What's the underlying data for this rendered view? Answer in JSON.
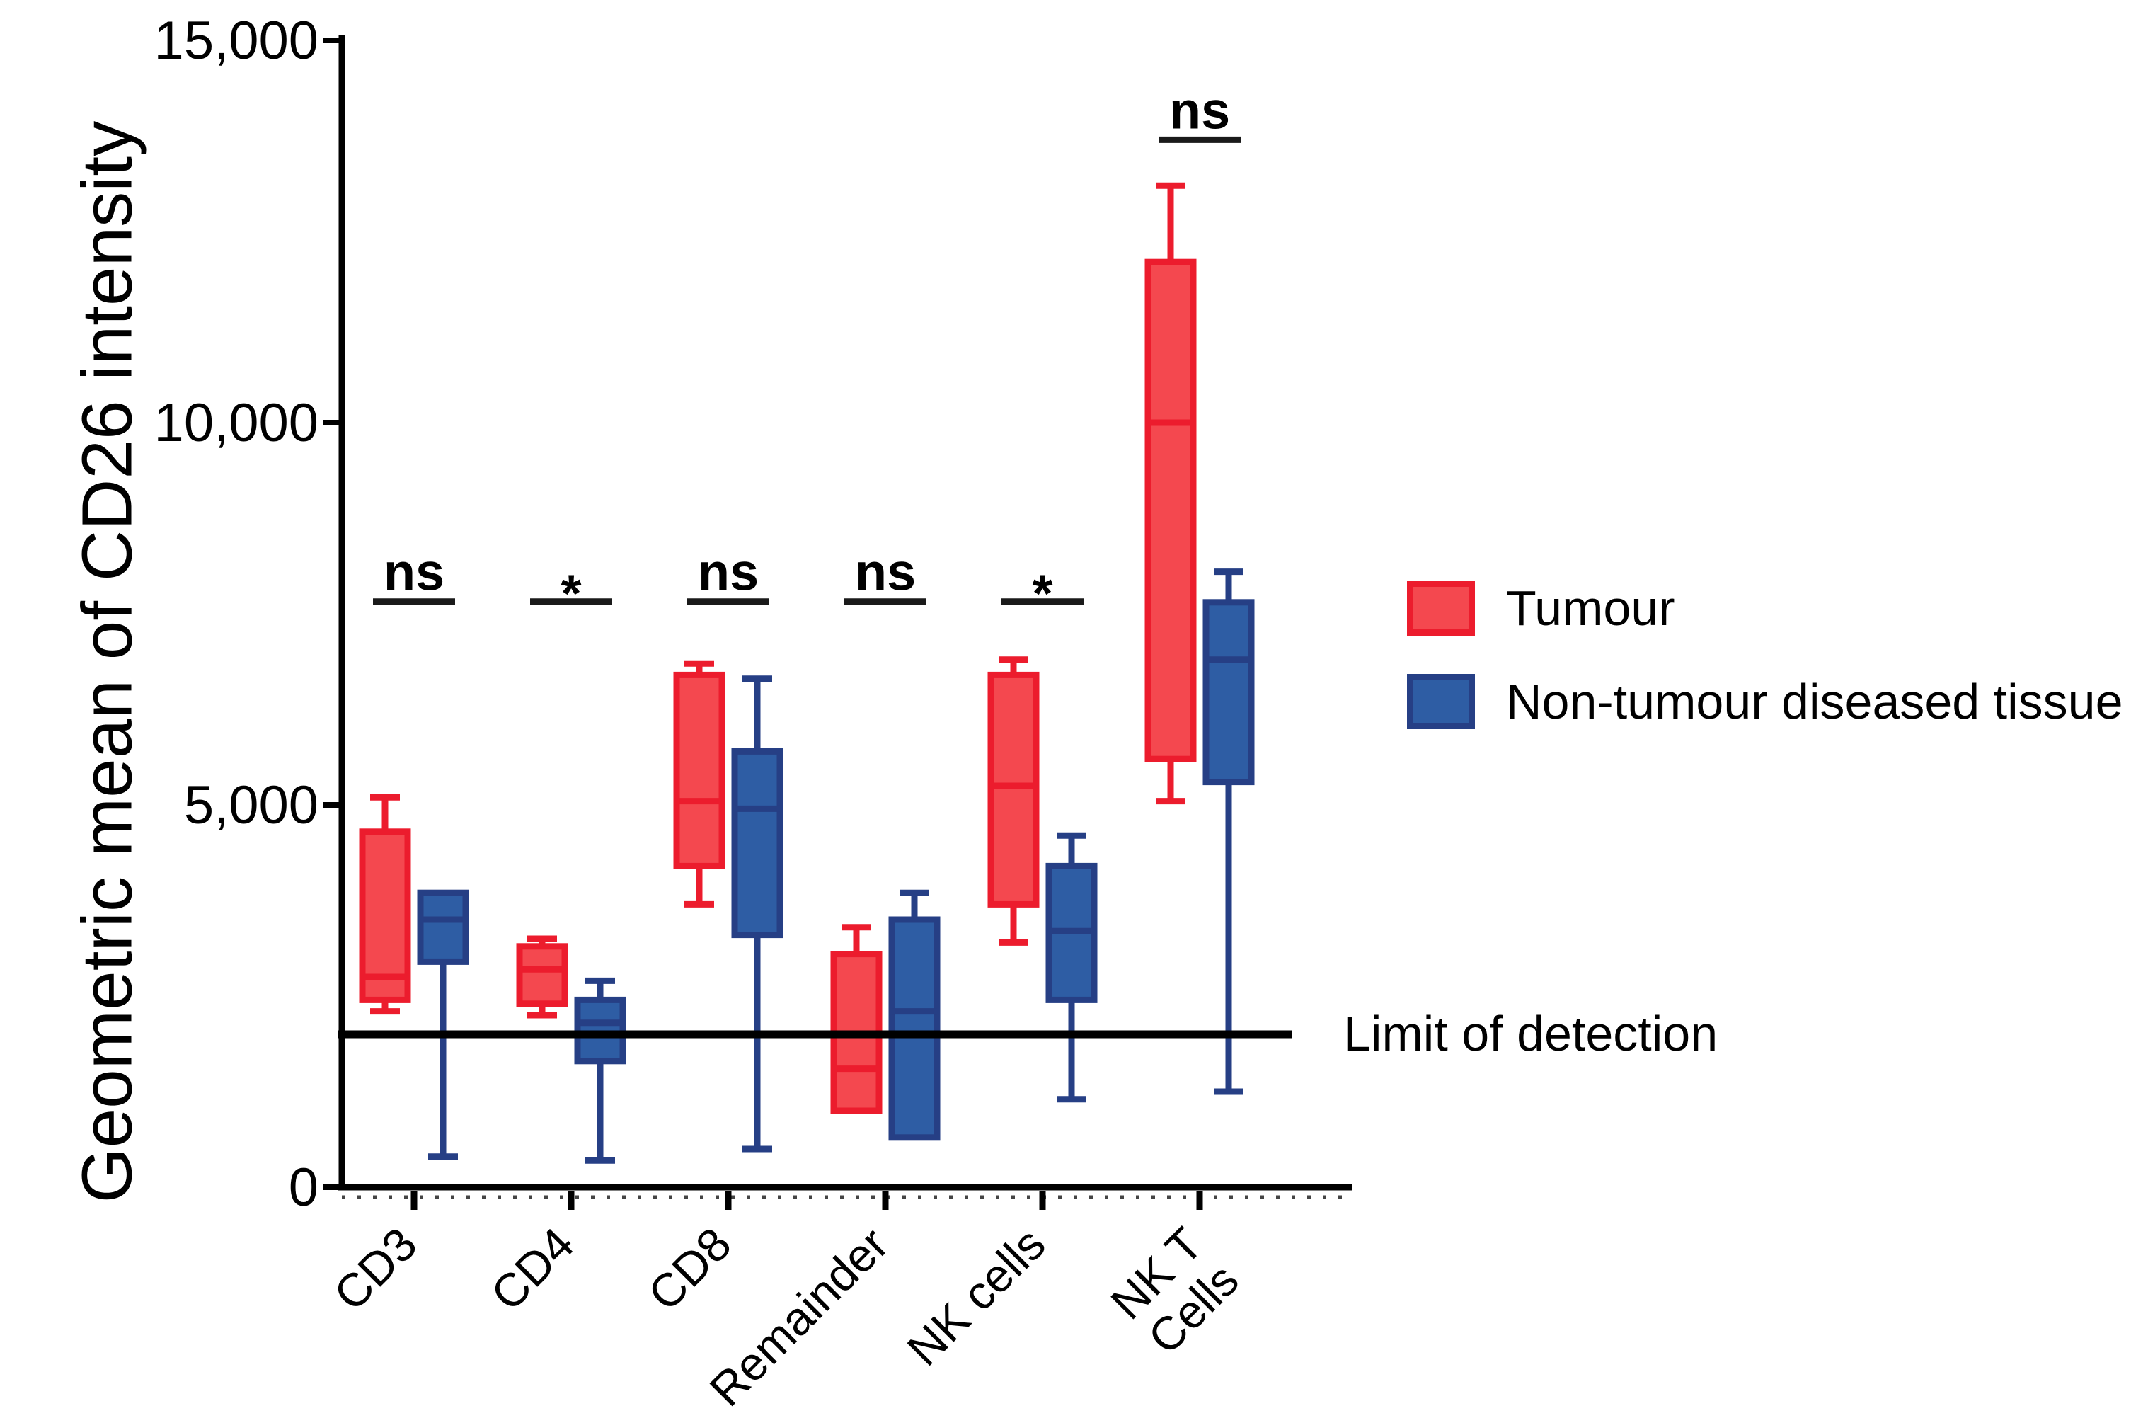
{
  "figure": {
    "y_axis_title": "Geometric mean of CD26 intensity",
    "background": "#ffffff",
    "axis_color": "#000000"
  },
  "legend": {
    "items": [
      {
        "label": "Tumour",
        "fill": "#F4484F",
        "stroke": "#EC1C2D"
      },
      {
        "label": "Non-tumour diseased tissue",
        "fill": "#2E5DA4",
        "stroke": "#263F85"
      }
    ]
  },
  "limit": {
    "label": "Limit of detection",
    "value": 2000
  },
  "chart_data": {
    "type": "box",
    "title": "",
    "xlabel": "",
    "ylabel": "Geometric mean of CD26 intensity",
    "ylim": [
      0,
      15000
    ],
    "grid": false,
    "legend_position": "right",
    "yticks": [
      {
        "value": 0,
        "label": "0"
      },
      {
        "value": 5000,
        "label": "5,000"
      },
      {
        "value": 10000,
        "label": "10,000"
      },
      {
        "value": 15000,
        "label": "15,000"
      }
    ],
    "categories": [
      "CD3",
      "CD4",
      "CD8",
      "Remainder",
      "NK cells",
      "NK T\nCells"
    ],
    "series": [
      {
        "name": "Tumour",
        "fill": "#F4484F",
        "stroke": "#EC1C2D",
        "boxes": [
          {
            "min": 2300,
            "q1": 2450,
            "median": 2750,
            "q3": 4650,
            "max": 5100
          },
          {
            "min": 2250,
            "q1": 2400,
            "median": 2850,
            "q3": 3150,
            "max": 3250
          },
          {
            "min": 3700,
            "q1": 4200,
            "median": 5050,
            "q3": 6700,
            "max": 6850
          },
          {
            "min": 1000,
            "q1": 1000,
            "median": 1550,
            "q3": 3050,
            "max": 3400
          },
          {
            "min": 3200,
            "q1": 3700,
            "median": 5250,
            "q3": 6700,
            "max": 6900
          },
          {
            "min": 5050,
            "q1": 5600,
            "median": 10000,
            "q3": 12100,
            "max": 13100
          }
        ]
      },
      {
        "name": "Non-tumour diseased tissue",
        "fill": "#2E5DA4",
        "stroke": "#263F85",
        "boxes": [
          {
            "min": 400,
            "q1": 2950,
            "median": 3500,
            "q3": 3850,
            "max": 3850
          },
          {
            "min": 350,
            "q1": 1650,
            "median": 2150,
            "q3": 2450,
            "max": 2700
          },
          {
            "min": 500,
            "q1": 3300,
            "median": 4950,
            "q3": 5700,
            "max": 6650
          },
          {
            "min": 650,
            "q1": 650,
            "median": 2300,
            "q3": 3500,
            "max": 3850
          },
          {
            "min": 1150,
            "q1": 2450,
            "median": 3350,
            "q3": 4200,
            "max": 4600
          },
          {
            "min": 1250,
            "q1": 5300,
            "median": 6900,
            "q3": 7650,
            "max": 8050
          }
        ]
      }
    ],
    "significance": [
      {
        "category": "CD3",
        "label": "ns",
        "bar_value": 7660
      },
      {
        "category": "CD4",
        "label": "*",
        "bar_value": 7660
      },
      {
        "category": "CD8",
        "label": "ns",
        "bar_value": 7660
      },
      {
        "category": "Remainder",
        "label": "ns",
        "bar_value": 7660
      },
      {
        "category": "NK cells",
        "label": "*",
        "bar_value": 7660
      },
      {
        "category": "NK T Cells",
        "label": "ns",
        "bar_value": 13700
      }
    ],
    "limit_of_detection": 2000
  }
}
